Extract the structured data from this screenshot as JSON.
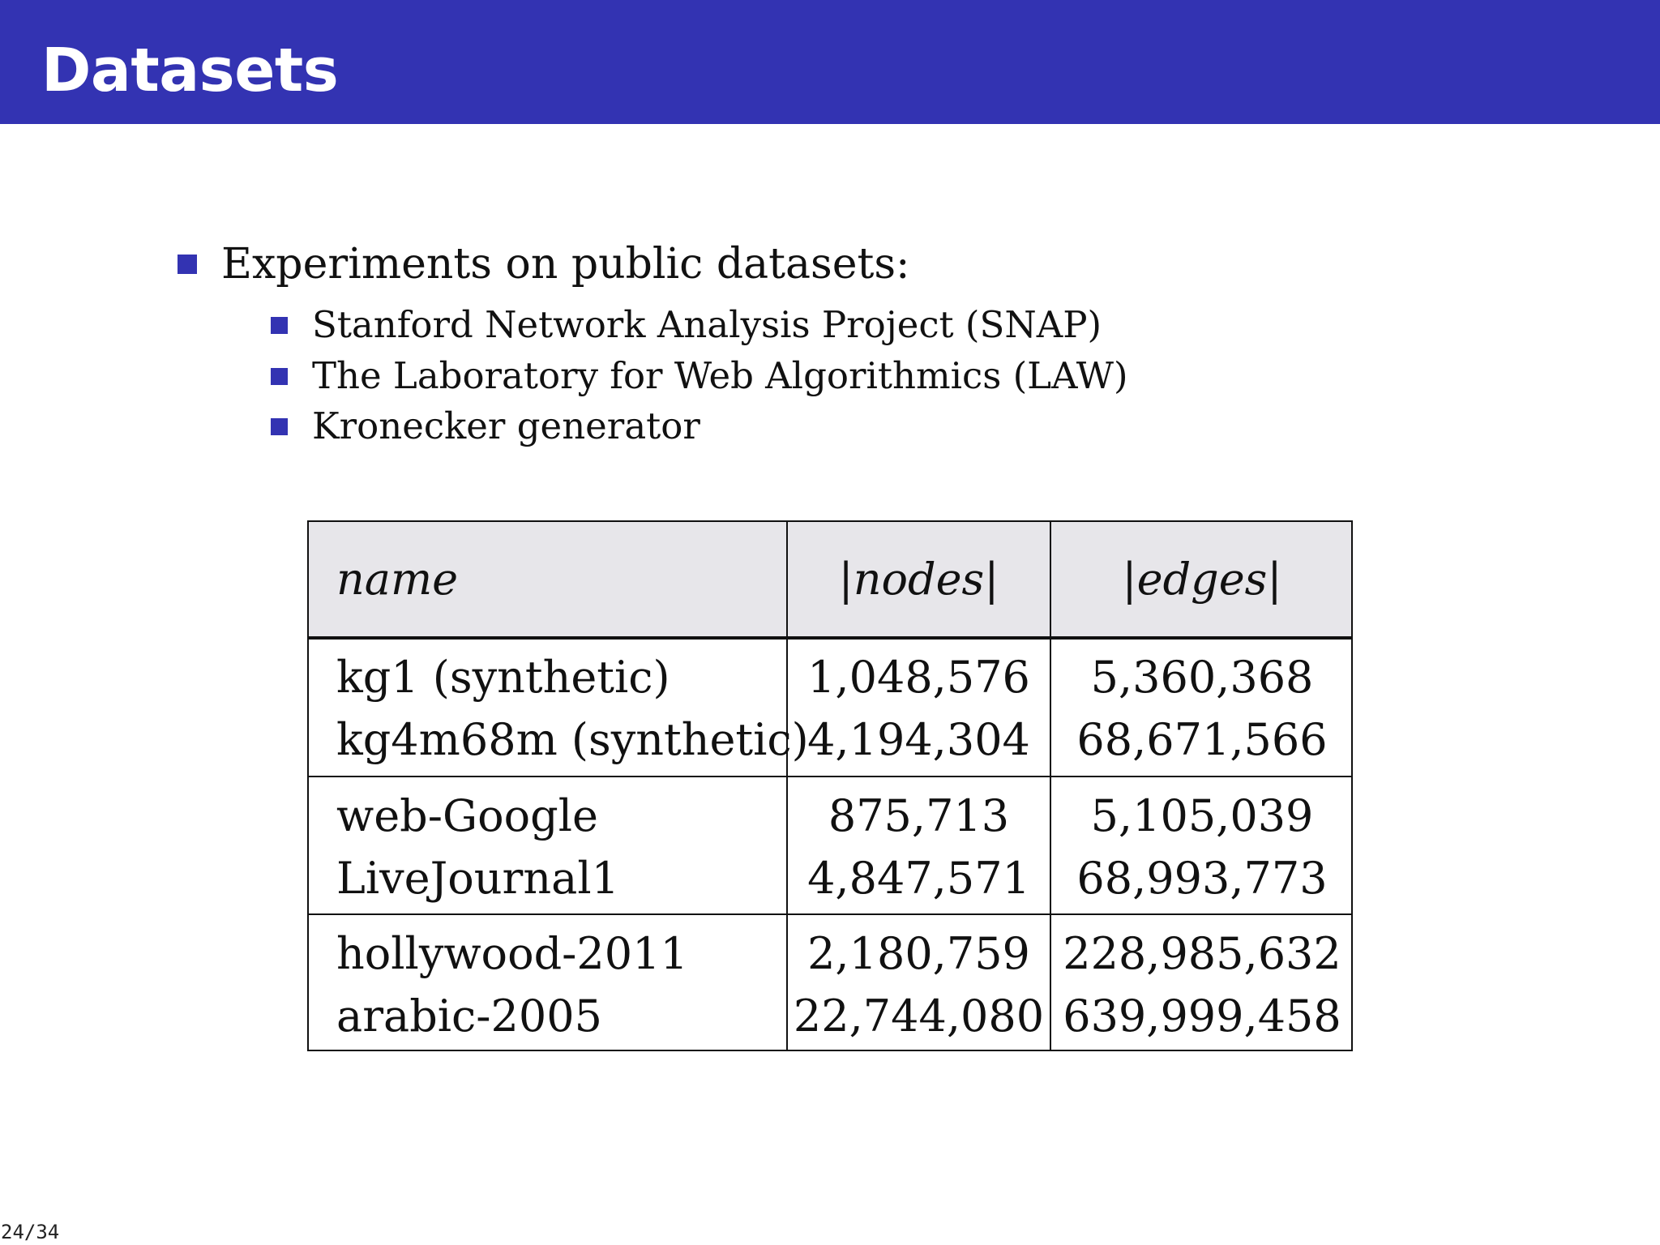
{
  "header": {
    "title": "Datasets"
  },
  "bullets": {
    "main": "Experiments on public datasets:",
    "sub": [
      "Stanford Network Analysis Project (SNAP)",
      "The Laboratory for Web Algorithmics (LAW)",
      "Kronecker generator"
    ]
  },
  "table": {
    "headers": [
      "name",
      "|nodes|",
      "|edges|"
    ],
    "rows": [
      [
        "kg1 (synthetic)",
        "1,048,576",
        "5,360,368"
      ],
      [
        "kg4m68m (synthetic)",
        "4,194,304",
        "68,671,566"
      ],
      [
        "web-Google",
        "875,713",
        "5,105,039"
      ],
      [
        "LiveJournal1",
        "4,847,571",
        "68,993,773"
      ],
      [
        "hollywood-2011",
        "2,180,759",
        "228,985,632"
      ],
      [
        "arabic-2005",
        "22,744,080",
        "639,999,458"
      ]
    ]
  },
  "footer": {
    "page": "24/34"
  },
  "colors": {
    "accent": "#3333b2",
    "table_header_bg": "#e7e6ea"
  }
}
